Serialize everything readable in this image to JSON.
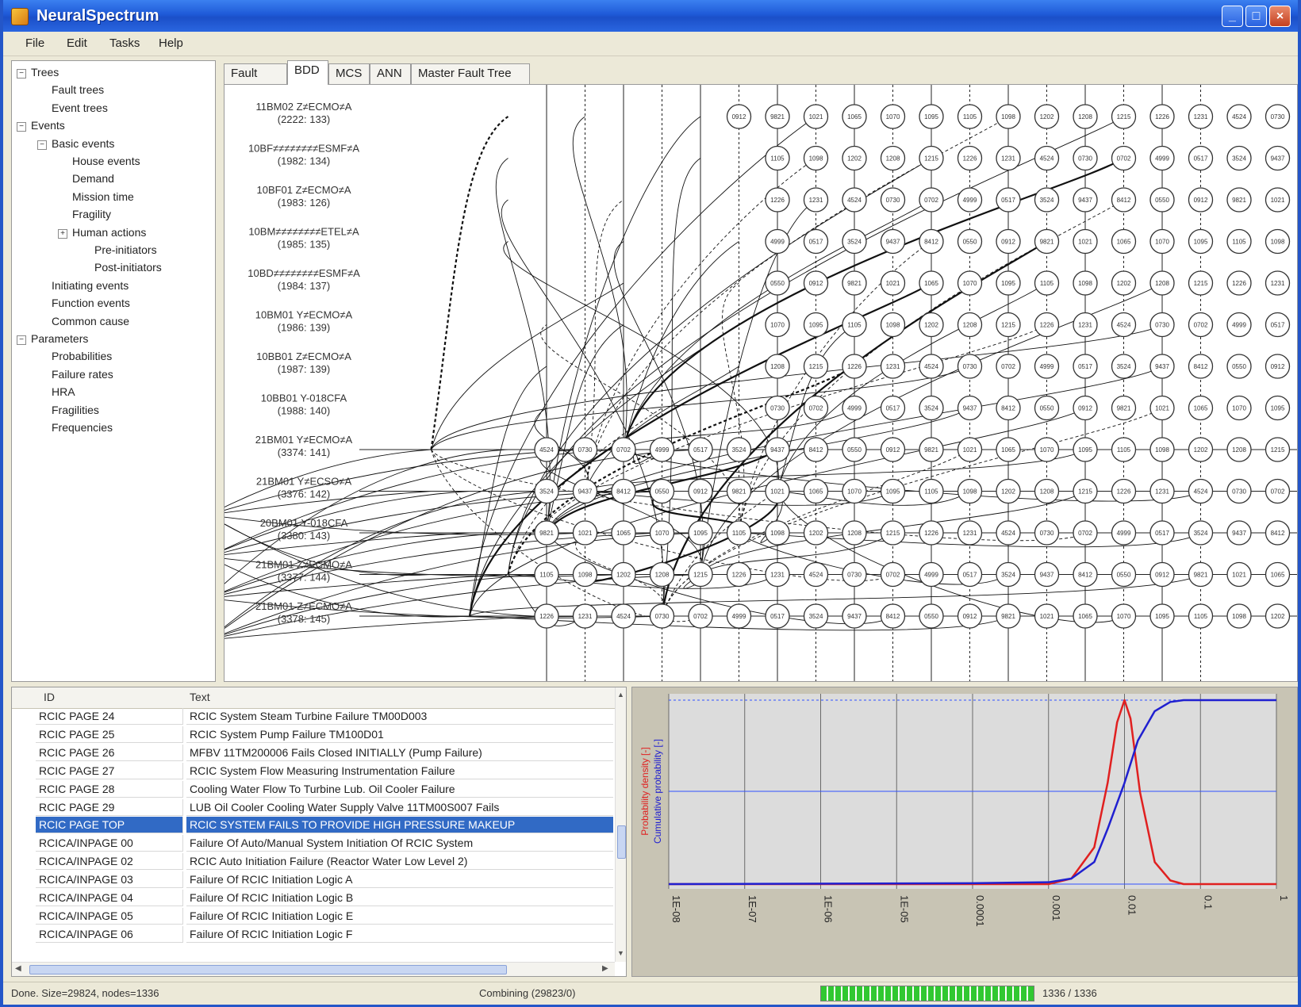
{
  "app": {
    "title": "NeuralSpectrum"
  },
  "window_controls": {
    "minimize": "_",
    "maximize": "□",
    "close": "×"
  },
  "menu": [
    "File",
    "Edit",
    "Tasks",
    "Help"
  ],
  "tree": [
    {
      "label": "Trees",
      "level": 0,
      "toggle": "−"
    },
    {
      "label": "Fault trees",
      "level": 1
    },
    {
      "label": "Event trees",
      "level": 1
    },
    {
      "label": "Events",
      "level": 0,
      "toggle": "−"
    },
    {
      "label": "Basic events",
      "level": 1,
      "toggle": "−"
    },
    {
      "label": "House events",
      "level": 2
    },
    {
      "label": "Demand",
      "level": 2
    },
    {
      "label": "Mission time",
      "level": 2
    },
    {
      "label": "Fragility",
      "level": 2
    },
    {
      "label": "Human actions",
      "level": 2,
      "toggle": "+"
    },
    {
      "label": "Pre-initiators",
      "level": 3
    },
    {
      "label": "Post-initiators",
      "level": 3
    },
    {
      "label": "Initiating events",
      "level": 1
    },
    {
      "label": "Function events",
      "level": 1
    },
    {
      "label": "Common cause",
      "level": 1
    },
    {
      "label": "Parameters",
      "level": 0,
      "toggle": "−"
    },
    {
      "label": "Probabilities",
      "level": 1
    },
    {
      "label": "Failure rates",
      "level": 1
    },
    {
      "label": "HRA",
      "level": 1
    },
    {
      "label": "Fragilities",
      "level": 1
    },
    {
      "label": "Frequencies",
      "level": 1
    }
  ],
  "tabs": [
    "Fault Tree",
    "BDD",
    "MCS",
    "ANN",
    "Master Fault Tree"
  ],
  "active_tab": "BDD",
  "bdd": {
    "root_labels": [
      {
        "name": "11BM02  Z≠ECMO≠A",
        "ids": "(2222: 133)"
      },
      {
        "name": "10BF≠≠≠≠≠≠≠≠ESMF≠A",
        "ids": "(1982: 134)"
      },
      {
        "name": "10BF01  Z≠ECMO≠A",
        "ids": "(1983: 126)"
      },
      {
        "name": "10BM≠≠≠≠≠≠≠≠ETEL≠A",
        "ids": "(1985: 135)"
      },
      {
        "name": "10BD≠≠≠≠≠≠≠≠ESMF≠A",
        "ids": "(1984: 137)"
      },
      {
        "name": "10BM01  Y≠ECMO≠A",
        "ids": "(1986: 139)"
      },
      {
        "name": "10BB01  Z≠ECMO≠A",
        "ids": "(1987: 139)"
      },
      {
        "name": "10BB01  Y-018CFA",
        "ids": "(1988: 140)"
      },
      {
        "name": "21BM01  Y≠ECMO≠A",
        "ids": "(3374: 141)"
      },
      {
        "name": "21BM01  Y≠ECSO≠A",
        "ids": "(3376: 142)"
      },
      {
        "name": "20BM01  Y-018CFA",
        "ids": "(3380: 143)"
      },
      {
        "name": "21BM01  Z≠ECMO≠A",
        "ids": "(3377: 144)"
      },
      {
        "name": "21BM01  Z≠ECMO≠A",
        "ids": "(3378: 145)"
      }
    ],
    "node_ids": [
      "4524",
      "0730",
      "0702",
      "4999",
      "0517",
      "3524",
      "9437",
      "8412",
      "0550",
      "0912",
      "9821",
      "1021",
      "1065",
      "1070",
      "1095",
      "1105",
      "1098",
      "1202",
      "1208",
      "1215",
      "1226",
      "1231"
    ]
  },
  "grid": {
    "columns": [
      "ID",
      "Text"
    ],
    "rows": [
      {
        "id": "RCIC PAGE 24",
        "text": "RCIC System Steam Turbine Failure TM00D003"
      },
      {
        "id": "RCIC PAGE 25",
        "text": "RCIC System Pump Failure TM100D01"
      },
      {
        "id": "RCIC PAGE 26",
        "text": "MFBV 11TM200006 Fails Closed INITIALLY (Pump Failure)"
      },
      {
        "id": "RCIC PAGE 27",
        "text": "RCIC System Flow Measuring Instrumentation Failure"
      },
      {
        "id": "RCIC PAGE 28",
        "text": "Cooling Water Flow To Turbine Lub. Oil Cooler Failure"
      },
      {
        "id": "RCIC PAGE 29",
        "text": "LUB Oil Cooler Cooling Water Supply Valve 11TM00S007 Fails"
      },
      {
        "id": "RCIC PAGE TOP",
        "text": "RCIC SYSTEM FAILS TO PROVIDE HIGH PRESSURE MAKEUP"
      },
      {
        "id": "RCICA/INPAGE 00",
        "text": "Failure Of Auto/Manual System Initiation Of RCIC System"
      },
      {
        "id": "RCICA/INPAGE 02",
        "text": "RCIC Auto Initiation Failure (Reactor Water Low Level 2)"
      },
      {
        "id": "RCICA/INPAGE 03",
        "text": "Failure Of RCIC Initiation Logic A"
      },
      {
        "id": "RCICA/INPAGE 04",
        "text": "Failure Of RCIC Initiation Logic B"
      },
      {
        "id": "RCICA/INPAGE 05",
        "text": "Failure Of RCIC Initiation Logic E"
      },
      {
        "id": "RCICA/INPAGE 06",
        "text": "Failure Of RCIC Initiation Logic F"
      }
    ],
    "selected_index": 6
  },
  "chart_data": {
    "type": "line",
    "x_scale": "log",
    "x_ticks": [
      "1E-08",
      "1E-07",
      "1E-06",
      "1E-05",
      "0.0001",
      "0.001",
      "0.01",
      "0.1",
      "1"
    ],
    "ylabel_density": "Probability density [-]",
    "ylabel_cumulative": "Cumulative probability [-]",
    "grid": true,
    "series": [
      {
        "color": "#e02020",
        "x": [
          1e-08,
          0.001,
          0.002,
          0.004,
          0.006,
          0.008,
          0.01,
          0.012,
          0.016,
          0.025,
          0.04,
          0.06,
          0.1,
          1
        ],
        "y": [
          0,
          0,
          0.03,
          0.2,
          0.55,
          0.88,
          1.0,
          0.9,
          0.5,
          0.12,
          0.02,
          0,
          0,
          0
        ]
      },
      {
        "color": "#2020d0",
        "x": [
          1e-08,
          0.0001,
          0.001,
          0.002,
          0.004,
          0.006,
          0.01,
          0.015,
          0.025,
          0.04,
          0.06,
          0.1,
          1
        ],
        "y": [
          0,
          0.005,
          0.01,
          0.03,
          0.12,
          0.3,
          0.55,
          0.78,
          0.94,
          0.99,
          1.0,
          1.0,
          1.0
        ]
      }
    ]
  },
  "status": {
    "left": "Done. Size=29824, nodes=1336",
    "middle": "Combining (29823/0)",
    "progress": 1.0,
    "right": "1336 / 1336"
  }
}
